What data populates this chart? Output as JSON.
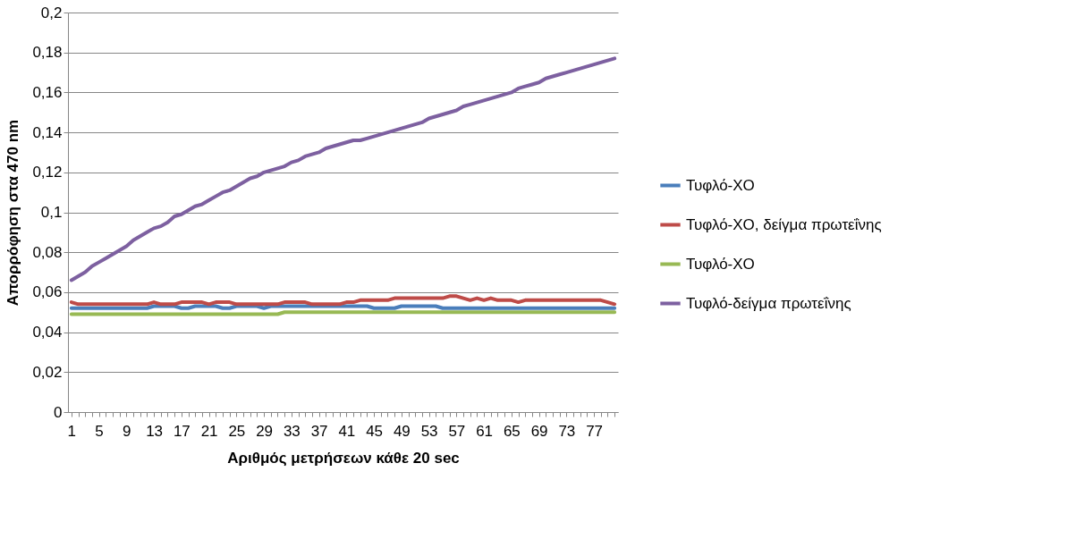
{
  "chart_data": {
    "type": "line",
    "xlabel": "Αριθμός μετρήσεων κάθε 20 sec",
    "ylabel": "Απορρόφηση στα 470 nm",
    "categories": [
      "1",
      null,
      null,
      null,
      "5",
      null,
      null,
      null,
      "9",
      null,
      null,
      null,
      "13",
      null,
      null,
      null,
      "17",
      null,
      null,
      null,
      "21",
      null,
      null,
      null,
      "25",
      null,
      null,
      null,
      "29",
      null,
      null,
      null,
      "33",
      null,
      null,
      null,
      "37",
      null,
      null,
      null,
      "41",
      null,
      null,
      null,
      "45",
      null,
      null,
      null,
      "49",
      null,
      null,
      null,
      "53",
      null,
      null,
      null,
      "57",
      null,
      null,
      null,
      "61",
      null,
      null,
      null,
      "65",
      null,
      null,
      null,
      "69",
      null,
      null,
      null,
      "73",
      null,
      null,
      null,
      "77",
      null,
      null,
      null
    ],
    "series": [
      {
        "name": "Τυφλό-ΧΟ",
        "color": "#4a7ebb",
        "values": [
          0.052,
          0.052,
          0.052,
          0.052,
          0.052,
          0.052,
          0.052,
          0.052,
          0.052,
          0.052,
          0.052,
          0.052,
          0.053,
          0.053,
          0.053,
          0.053,
          0.052,
          0.052,
          0.053,
          0.053,
          0.053,
          0.053,
          0.052,
          0.052,
          0.053,
          0.053,
          0.053,
          0.053,
          0.052,
          0.053,
          0.053,
          0.053,
          0.053,
          0.053,
          0.053,
          0.053,
          0.053,
          0.053,
          0.053,
          0.053,
          0.053,
          0.053,
          0.053,
          0.053,
          0.052,
          0.052,
          0.052,
          0.052,
          0.053,
          0.053,
          0.053,
          0.053,
          0.053,
          0.053,
          0.052,
          0.052,
          0.052,
          0.052,
          0.052,
          0.052,
          0.052,
          0.052,
          0.052,
          0.052,
          0.052,
          0.052,
          0.052,
          0.052,
          0.052,
          0.052,
          0.052,
          0.052,
          0.052,
          0.052,
          0.052,
          0.052,
          0.052,
          0.052,
          0.052,
          0.052
        ]
      },
      {
        "name": "Τυφλό-ΧΟ, δείγμα πρωτεΐνης",
        "color": "#be4b48",
        "values": [
          0.055,
          0.054,
          0.054,
          0.054,
          0.054,
          0.054,
          0.054,
          0.054,
          0.054,
          0.054,
          0.054,
          0.054,
          0.055,
          0.054,
          0.054,
          0.054,
          0.055,
          0.055,
          0.055,
          0.055,
          0.054,
          0.055,
          0.055,
          0.055,
          0.054,
          0.054,
          0.054,
          0.054,
          0.054,
          0.054,
          0.054,
          0.055,
          0.055,
          0.055,
          0.055,
          0.054,
          0.054,
          0.054,
          0.054,
          0.054,
          0.055,
          0.055,
          0.056,
          0.056,
          0.056,
          0.056,
          0.056,
          0.057,
          0.057,
          0.057,
          0.057,
          0.057,
          0.057,
          0.057,
          0.057,
          0.058,
          0.058,
          0.057,
          0.056,
          0.057,
          0.056,
          0.057,
          0.056,
          0.056,
          0.056,
          0.055,
          0.056,
          0.056,
          0.056,
          0.056,
          0.056,
          0.056,
          0.056,
          0.056,
          0.056,
          0.056,
          0.056,
          0.056,
          0.055,
          0.054
        ]
      },
      {
        "name": "Τυφλό-ΧΟ",
        "color": "#98b954",
        "values": [
          0.049,
          0.049,
          0.049,
          0.049,
          0.049,
          0.049,
          0.049,
          0.049,
          0.049,
          0.049,
          0.049,
          0.049,
          0.049,
          0.049,
          0.049,
          0.049,
          0.049,
          0.049,
          0.049,
          0.049,
          0.049,
          0.049,
          0.049,
          0.049,
          0.049,
          0.049,
          0.049,
          0.049,
          0.049,
          0.049,
          0.049,
          0.05,
          0.05,
          0.05,
          0.05,
          0.05,
          0.05,
          0.05,
          0.05,
          0.05,
          0.05,
          0.05,
          0.05,
          0.05,
          0.05,
          0.05,
          0.05,
          0.05,
          0.05,
          0.05,
          0.05,
          0.05,
          0.05,
          0.05,
          0.05,
          0.05,
          0.05,
          0.05,
          0.05,
          0.05,
          0.05,
          0.05,
          0.05,
          0.05,
          0.05,
          0.05,
          0.05,
          0.05,
          0.05,
          0.05,
          0.05,
          0.05,
          0.05,
          0.05,
          0.05,
          0.05,
          0.05,
          0.05,
          0.05,
          0.05
        ]
      },
      {
        "name": "Τυφλό-δείγμα πρωτεΐνης",
        "color": "#7d60a0",
        "values": [
          0.066,
          0.068,
          0.07,
          0.073,
          0.075,
          0.077,
          0.079,
          0.081,
          0.083,
          0.086,
          0.088,
          0.09,
          0.092,
          0.093,
          0.095,
          0.098,
          0.099,
          0.101,
          0.103,
          0.104,
          0.106,
          0.108,
          0.11,
          0.111,
          0.113,
          0.115,
          0.117,
          0.118,
          0.12,
          0.121,
          0.122,
          0.123,
          0.125,
          0.126,
          0.128,
          0.129,
          0.13,
          0.132,
          0.133,
          0.134,
          0.135,
          0.136,
          0.136,
          0.137,
          0.138,
          0.139,
          0.14,
          0.141,
          0.142,
          0.143,
          0.144,
          0.145,
          0.147,
          0.148,
          0.149,
          0.15,
          0.151,
          0.153,
          0.154,
          0.155,
          0.156,
          0.157,
          0.158,
          0.159,
          0.16,
          0.162,
          0.163,
          0.164,
          0.165,
          0.167,
          0.168,
          0.169,
          0.17,
          0.171,
          0.172,
          0.173,
          0.174,
          0.175,
          0.176,
          0.177
        ]
      }
    ],
    "ylim": [
      0,
      0.2
    ],
    "yticks": [
      0,
      {
        "value": 0.02,
        "label": "0,02"
      },
      {
        "value": 0.04,
        "label": "0,04"
      },
      {
        "value": 0.06,
        "label": "0,06"
      },
      {
        "value": 0.08,
        "label": "0,08"
      },
      {
        "value": 0.1,
        "label": "0,1"
      },
      {
        "value": 0.12,
        "label": "0,12"
      },
      {
        "value": 0.14,
        "label": "0,14"
      },
      {
        "value": 0.16,
        "label": "0,16"
      },
      {
        "value": 0.18,
        "label": "0,18"
      },
      {
        "value": 0.2,
        "label": "0,2"
      }
    ],
    "grid": "y",
    "legend": "right",
    "marker": "none",
    "line_style": "solid"
  }
}
